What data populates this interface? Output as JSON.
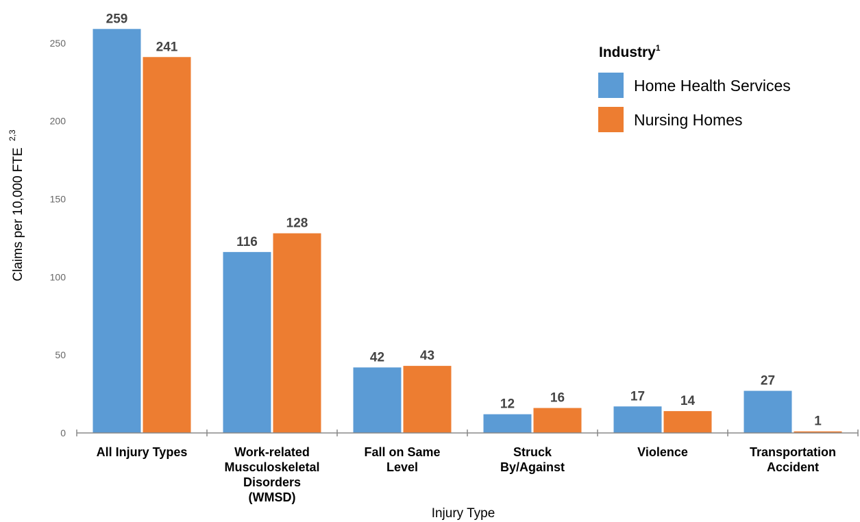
{
  "chart_data": {
    "type": "bar",
    "categories": [
      [
        "All Injury Types"
      ],
      [
        "Work-related",
        "Musculoskeletal",
        "Disorders",
        "(WMSD)"
      ],
      [
        "Fall on Same",
        "Level"
      ],
      [
        "Struck",
        "By/Against"
      ],
      [
        "Violence"
      ],
      [
        "Transportation",
        "Accident"
      ]
    ],
    "series": [
      {
        "name": "Home Health Services",
        "color": "#5b9bd5",
        "values": [
          259,
          116,
          42,
          12,
          17,
          27
        ]
      },
      {
        "name": "Nursing Homes",
        "color": "#ed7d31",
        "values": [
          241,
          128,
          43,
          16,
          14,
          1
        ]
      }
    ],
    "xlabel": "Injury Type",
    "ylabel": "Claims per 10,000 FTE",
    "ylabel_sup": "2,3",
    "legend_title": "Industry",
    "legend_title_sup": "1",
    "legend_position": "top-right",
    "ylim": [
      0,
      260
    ],
    "yticks": [
      0,
      50,
      100,
      150,
      200,
      250
    ],
    "grid": false
  }
}
